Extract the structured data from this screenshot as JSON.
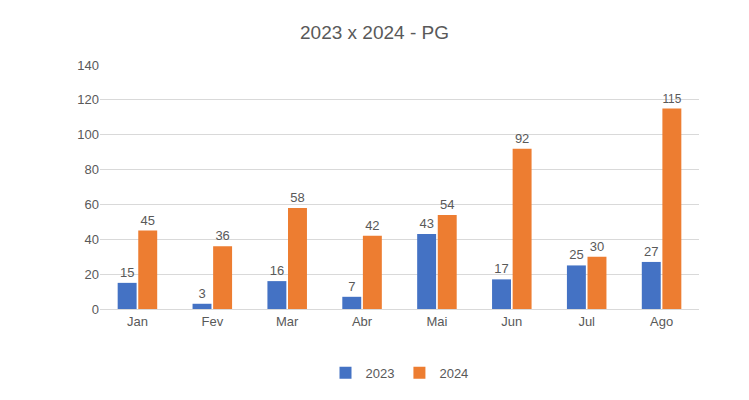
{
  "chart_data": {
    "type": "bar",
    "title": "2023 x 2024 - PG",
    "categories": [
      "Jan",
      "Fev",
      "Mar",
      "Abr",
      "Mai",
      "Jun",
      "Jul",
      "Ago"
    ],
    "series": [
      {
        "name": "2023",
        "color": "#4472c4",
        "values": [
          15,
          3,
          16,
          7,
          43,
          17,
          25,
          27
        ]
      },
      {
        "name": "2024",
        "color": "#ed7d31",
        "values": [
          45,
          36,
          58,
          42,
          54,
          92,
          30,
          115
        ]
      }
    ],
    "ylim": [
      0,
      140
    ],
    "yticks": [
      0,
      20,
      40,
      60,
      80,
      100,
      120,
      140
    ],
    "grid": true,
    "legend": "bottom",
    "data_labels": true
  }
}
